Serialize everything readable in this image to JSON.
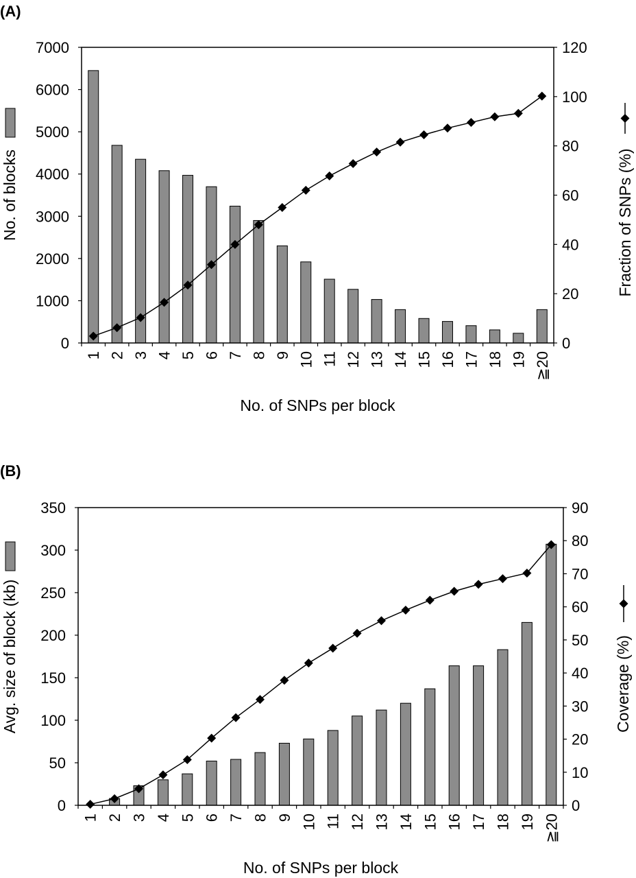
{
  "chart_data": [
    {
      "panel_label": "(A)",
      "type": "bar",
      "categories": [
        "1",
        "2",
        "3",
        "4",
        "5",
        "6",
        "7",
        "8",
        "9",
        "10",
        "11",
        "12",
        "13",
        "14",
        "15",
        "16",
        "17",
        "18",
        "19",
        "≧20"
      ],
      "xlabel": "No. of SNPs per block",
      "ylabel": "No. of blocks",
      "y2label": "Fraction of SNPs (%)",
      "ylim": [
        0,
        7000
      ],
      "y2lim": [
        0,
        120
      ],
      "yticks": [
        "0",
        "1000",
        "2000",
        "3000",
        "4000",
        "5000",
        "6000",
        "7000"
      ],
      "y2ticks": [
        "0",
        "20",
        "40",
        "60",
        "80",
        "100",
        "120"
      ],
      "grid": false,
      "series": [
        {
          "type": "bar",
          "axis": "left",
          "color": "#8c8c8c",
          "values": [
            6450,
            4680,
            4350,
            4080,
            3970,
            3700,
            3240,
            2900,
            2300,
            1920,
            1510,
            1270,
            1030,
            790,
            580,
            510,
            410,
            310,
            230,
            790
          ]
        },
        {
          "type": "line",
          "axis": "right",
          "marker": "diamond",
          "color": "#000000",
          "values": [
            2.8,
            6.2,
            10.3,
            16.5,
            23.5,
            31.8,
            40.0,
            48.0,
            55.0,
            62.0,
            67.8,
            72.8,
            77.5,
            81.5,
            84.5,
            87.2,
            89.5,
            91.8,
            93.2,
            100.2
          ]
        }
      ]
    },
    {
      "panel_label": "(B)",
      "type": "bar",
      "categories": [
        "1",
        "2",
        "3",
        "4",
        "5",
        "6",
        "7",
        "8",
        "9",
        "10",
        "11",
        "12",
        "13",
        "14",
        "15",
        "16",
        "17",
        "18",
        "19",
        "≧20"
      ],
      "xlabel": "No. of SNPs per block",
      "ylabel": "Avg. size of block (kb)",
      "y2label": "Coverage (%)",
      "ylim": [
        0,
        350
      ],
      "y2lim": [
        0,
        90
      ],
      "yticks": [
        "0",
        "50",
        "100",
        "150",
        "200",
        "250",
        "300",
        "350"
      ],
      "y2ticks": [
        "0",
        "10",
        "20",
        "30",
        "40",
        "50",
        "60",
        "70",
        "80",
        "90"
      ],
      "grid": false,
      "series": [
        {
          "type": "bar",
          "axis": "left",
          "color": "#8c8c8c",
          "values": [
            0,
            8,
            23,
            30,
            37,
            52,
            54,
            62,
            73,
            78,
            88,
            105,
            112,
            120,
            137,
            164,
            164,
            183,
            215,
            307
          ]
        },
        {
          "type": "line",
          "axis": "right",
          "marker": "diamond",
          "color": "#000000",
          "values": [
            0.3,
            2.0,
            5.0,
            9.2,
            13.8,
            20.3,
            26.5,
            32.0,
            37.8,
            43.0,
            47.5,
            52.0,
            55.8,
            59.0,
            62.0,
            64.7,
            66.8,
            68.5,
            70.2,
            78.8
          ]
        }
      ]
    }
  ]
}
